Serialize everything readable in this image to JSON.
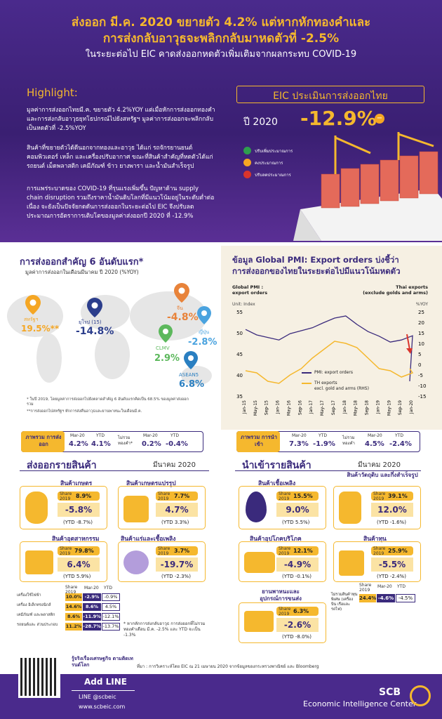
{
  "header": {
    "title1": "ส่งออก มี.ค. 2020 ขยายตัว 4.2% แต่หากหักทองคำและ",
    "title2": "การส่งกลับอาวุธจะพลิกกลับมาหดตัวที่ -2.5%",
    "subtitle": "ในระยะต่อไป EIC คาดส่งออกหดตัวเพิ่มเติมจากผลกระทบ COVID-19"
  },
  "highlight": {
    "title": "Highlight:",
    "p1": "มูลค่าการส่งออกไทยมี.ค. ขยายตัว 4.2%YOY แต่เมื่อหักการส่งออกทองคำ และการส่งกลับอาวุธยุทโธปกรณ์ไปยังสหรัฐฯ มูลค่าการส่งออกจะพลิกกลับเป็นหดตัวที่ -2.5%YOY",
    "p2": "สินค้าที่ขยายตัวได้ดีนอกจากทองและอาวุธ ได้แก่ รถจักรยานยนต์ คอมพิวเตอร์ เหล็ก และเครื่องปรับอากาศ ขณะที่สินค้าสำคัญที่หดตัวได้แก่ รถยนต์ เม็ดพลาสติก เคมีภัณฑ์ ข้าว ยางพารา และน้ำมันสำเร็จรูป",
    "p3": "การแพร่ระบาดของ COVID-19 ที่รุนแรงเพิ่มขึ้น ปัญหาด้าน supply chain disruption รวมถึงราคาน้ำมันดิบโลกที่มีแนวโน้มอยู่ในระดับต่ำต่อเนื่อง จะยังเป็นปัจจัยกดดันการส่งออกในระยะต่อไป EIC จึงปรับลดประมาณการอัตราการเติบโตของมูลค่าส่งออกปี 2020 ที่ -12.9%"
  },
  "forecast": {
    "title": "EIC ประเมินการส่งออกไทย",
    "year_label": "ปี 2020",
    "value": "-12.9%",
    "legend": [
      "ปรับเพิ่มประมาณการ",
      "คงประมาณการ",
      "ปรับลดประมาณการ"
    ]
  },
  "markets": {
    "title": "การส่งออกสำคัญ 6 อันดับแรก*",
    "subtitle": "มูลค่าการส่งออกในเดือนมีนาคม ปี 2020 (%YOY)",
    "items": [
      {
        "name": "สหรัฐฯ",
        "value": "19.5%**",
        "color": "#f5a623"
      },
      {
        "name": "ยุโรป (15)",
        "value": "-14.8%",
        "color": "#2c3e8c"
      },
      {
        "name": "จีน",
        "value": "-4.8%",
        "color": "#e8833a"
      },
      {
        "name": "ญี่ปุ่น",
        "value": "-2.8%",
        "color": "#4aa3df"
      },
      {
        "name": "CLMV",
        "value": "2.9%",
        "color": "#5cb85c"
      },
      {
        "name": "ASEAN5",
        "value": "6.8%",
        "color": "#2a7fc1"
      }
    ],
    "note1": "* ในปี 2019, โดยมูลค่าการส่งออกไปยังตลาดสำคัญ 6 อันดับแรกคิดเป็น 68.5% ของมูลค่าส่งออกรวม",
    "note2": "**การส่งออกไปสหรัฐฯ หักการส่งคืนอาวุธและยานพาหนะในเดือนมี.ค."
  },
  "pmi": {
    "title1": "ข้อมูล Global PMI: Export orders บ่งชี้ว่า",
    "title2": "การส่งออกของไทยในระยะต่อไปมีแนวโน้มหดตัว",
    "left_head1": "Global PMI :",
    "left_head2": "export orders",
    "right_head1": "Thai exports",
    "right_head2": "(exclude golds and arms)",
    "left_unit": "Unit: Index",
    "right_unit": "%YOY",
    "legend1": "PMI: export orders",
    "legend2a": "TH exports",
    "legend2b": "excl. gold and arms (RHS)"
  },
  "chart_data": {
    "type": "line",
    "x": [
      "Jan-15",
      "May-15",
      "Sep-15",
      "Jan-16",
      "May-16",
      "Sep-16",
      "Jan-17",
      "May-17",
      "Sep-17",
      "Jan-18",
      "May-18",
      "Sep-18",
      "Jan-19",
      "May-19",
      "Sep-19",
      "Jan-20"
    ],
    "series": [
      {
        "name": "PMI: export orders",
        "axis": "left",
        "values": [
          50.8,
          49.5,
          48.9,
          48.3,
          49.8,
          50.5,
          51.2,
          52.4,
          53.5,
          54.0,
          52.0,
          50.3,
          49.2,
          47.8,
          48.3,
          49.3
        ]
      },
      {
        "name": "TH exports excl. gold and arms (RHS)",
        "axis": "right",
        "values": [
          -3,
          -4,
          -8,
          -9,
          -5,
          -2,
          3,
          7,
          11,
          10,
          8,
          3,
          -2,
          -3,
          -6,
          -4
        ]
      }
    ],
    "left_ylim": [
      35,
      55
    ],
    "left_ticks": [
      "55",
      "50",
      "45",
      "40",
      "35"
    ],
    "right_ylim": [
      -15,
      25
    ],
    "right_ticks": [
      "25",
      "20",
      "15",
      "10",
      "5",
      "0",
      "-5",
      "-10",
      "-15"
    ],
    "last_point_left": 38.5,
    "last_point_right": -2
  },
  "summary_export": {
    "label": "ภาพรวม การส่งออก",
    "h1": "Mar-20",
    "h2": "YTD",
    "v1": "4.2%",
    "v2": "4.1%",
    "gold_label": "ไม่รวม ทองคำ*",
    "gv1": "0.2%",
    "gv2": "-0.4%"
  },
  "summary_import": {
    "label": "ภาพรวม การนำเข้า",
    "h1": "Mar-20",
    "h2": "YTD",
    "v1": "7.3%",
    "v2": "-1.9%",
    "gold_label": "ไม่รวม ทองคำ",
    "gv1": "4.5%",
    "gv2": "-2.4%"
  },
  "export_goods": {
    "title": "ส่งออกรายสินค้า",
    "month": "มีนาคม 2020",
    "share_label": "Share 2019",
    "items": [
      {
        "name": "สินค้าเกษตร",
        "share": "8.9%",
        "value": "-5.8%",
        "ytd": "(YTD -8.7%)"
      },
      {
        "name": "สินค้าเกษตรแปรรูป",
        "share": "7.7%",
        "value": "4.7%",
        "ytd": "(YTD 3.3%)"
      },
      {
        "name": "สินค้าอุตสาหกรรม",
        "share": "79.8%",
        "value": "6.4%",
        "ytd": "(YTD 5.9%)"
      },
      {
        "name": "สินค้าแร่และเชื้อเพลิง",
        "share": "3.7%",
        "value": "-19.7%",
        "ytd": "(YTD -2.3%)"
      }
    ],
    "table_head": [
      "Share 2019",
      "Mar-20",
      "YTD"
    ],
    "rows": [
      {
        "name": "เครื่องใช้ไฟฟ้า",
        "share": "10.0%",
        "mar": "-2.9%",
        "ytd": "-0.9%"
      },
      {
        "name": "เครื่อง อิเล็กทรอนิกส์",
        "share": "14.6%",
        "mar": "8.6%",
        "ytd": "4.5%"
      },
      {
        "name": "เคมีภัณฑ์ และพลาสติก",
        "share": "8.6%",
        "mar": "-11.9%",
        "ytd": "-12.1%"
      },
      {
        "name": "รถยนต์และ ส่วนประกอบ",
        "share": "11.2%",
        "mar": "-28.7%",
        "ytd": "-13.7%"
      }
    ],
    "note": "* หากหักการส่งกลับอาวุธ การส่งออกที่ไม่รวมทองคำเดือน มี.ค. -2.5% และ YTD จะเป็น -1.3%"
  },
  "import_goods": {
    "title": "นำเข้ารายสินค้า",
    "month": "มีนาคม 2020",
    "share_label": "Share 2019",
    "items": [
      {
        "name": "สินค้าเชื้อเพลิง",
        "share": "15.5%",
        "value": "9.0%",
        "ytd": "(YTD 5.5%)"
      },
      {
        "name": "สินค้าวัตถุดิบ และกึ่งสำเร็จรูป",
        "share": "39.1%",
        "value": "12.0%",
        "ytd": "(YTD -1.6%)"
      },
      {
        "name": "สินค้าอุปโภคบริโภค",
        "share": "12.1%",
        "value": "-4.9%",
        "ytd": "(YTD -0.1%)"
      },
      {
        "name": "สินค้าทุน",
        "share": "25.9%",
        "value": "-5.5%",
        "ytd": "(YTD -2.4%)"
      },
      {
        "name": "ยานพาหนะและ อุปกรณ์การขนส่ง",
        "share": "6.3%",
        "value": "-2.6%",
        "ytd": "(YTD -8.0%)"
      }
    ],
    "table_head": [
      "Share 2019",
      "Mar-20",
      "YTD"
    ],
    "row": {
      "name": "ไม่รวมสินค้าทุนพิเศษ (เครื่องบิน เรือและรถไฟ)",
      "share": "24.4%",
      "mar": "-4.6%",
      "ytd": "-4.5%"
    }
  },
  "footer": {
    "source": "ที่มา : การวิเคราะห์โดย EIC ณ 21 เมษายน 2020 จากข้อมูลของกระทรวงพาณิชย์ และ Bloomberg",
    "cta": "รู้จริงเรื่องเศรษฐกิจ ตามติดเทรนด์โลก",
    "line_btn": "Add LINE",
    "line_id": "LINE @scbeic",
    "web": "www.scbeic.com",
    "brand": "SCB",
    "brand_sub": "Economic Intelligence Center"
  }
}
